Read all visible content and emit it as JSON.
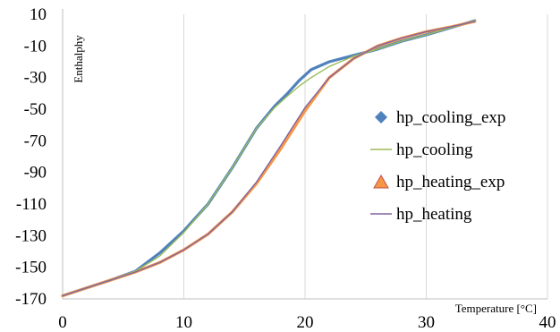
{
  "chart_data": {
    "type": "line",
    "xlabel": "Temperature [°C]",
    "ylabel": "Enthalphy",
    "xlim": [
      0,
      40
    ],
    "ylim": [
      -170,
      10
    ],
    "x_ticks": [
      0,
      10,
      20,
      30,
      40
    ],
    "y_ticks": [
      10,
      -10,
      -30,
      -50,
      -70,
      -90,
      -110,
      -130,
      -150,
      -170
    ],
    "grid": "vertical",
    "legend_position": "right",
    "series": [
      {
        "name": "hp_cooling_exp",
        "color": "#4f81bd",
        "marker": "diamond",
        "points": [
          [
            0,
            -168
          ],
          [
            2,
            -163
          ],
          [
            4,
            -158
          ],
          [
            6,
            -152.5
          ],
          [
            8,
            -141
          ],
          [
            10,
            -127
          ],
          [
            12,
            -110
          ],
          [
            14,
            -87
          ],
          [
            16,
            -62
          ],
          [
            17.5,
            -48
          ],
          [
            18.5,
            -40.5
          ],
          [
            19.5,
            -32
          ],
          [
            20.5,
            -25
          ],
          [
            22,
            -20
          ],
          [
            24,
            -16
          ],
          [
            26,
            -12
          ],
          [
            28,
            -7
          ],
          [
            30,
            -3
          ],
          [
            32,
            1.5
          ],
          [
            34,
            6
          ]
        ]
      },
      {
        "name": "hp_cooling",
        "color": "#9bbb59",
        "marker": "line",
        "points": [
          [
            0,
            -168
          ],
          [
            2,
            -163
          ],
          [
            4,
            -158
          ],
          [
            6,
            -152.5
          ],
          [
            8,
            -143
          ],
          [
            10,
            -128
          ],
          [
            12,
            -110
          ],
          [
            14,
            -87
          ],
          [
            16,
            -62
          ],
          [
            17.5,
            -49
          ],
          [
            18.5,
            -42
          ],
          [
            19.5,
            -35.5
          ],
          [
            20.5,
            -30
          ],
          [
            22,
            -23
          ],
          [
            24,
            -16.5
          ],
          [
            26,
            -12
          ],
          [
            28,
            -7
          ],
          [
            30,
            -3
          ],
          [
            32,
            1.5
          ],
          [
            34,
            6
          ]
        ]
      },
      {
        "name": "hp_heating_exp",
        "color": "#f79646",
        "marker": "triangle",
        "points": [
          [
            0,
            -168
          ],
          [
            2,
            -163
          ],
          [
            4,
            -158
          ],
          [
            6,
            -153
          ],
          [
            8,
            -147
          ],
          [
            10,
            -139
          ],
          [
            12,
            -129
          ],
          [
            14,
            -115
          ],
          [
            16,
            -97
          ],
          [
            18,
            -75
          ],
          [
            20,
            -51
          ],
          [
            22,
            -30
          ],
          [
            24,
            -18
          ],
          [
            26,
            -10
          ],
          [
            28,
            -5
          ],
          [
            30,
            -1
          ],
          [
            32,
            2
          ],
          [
            34,
            5.5
          ]
        ]
      },
      {
        "name": "hp_heating",
        "color": "#8064a2",
        "marker": "line",
        "points": [
          [
            0,
            -168
          ],
          [
            2,
            -163
          ],
          [
            4,
            -158
          ],
          [
            6,
            -153
          ],
          [
            8,
            -147
          ],
          [
            10,
            -139
          ],
          [
            12,
            -129
          ],
          [
            14,
            -115
          ],
          [
            16,
            -96
          ],
          [
            18,
            -73
          ],
          [
            20,
            -49
          ],
          [
            22,
            -30
          ],
          [
            24,
            -18
          ],
          [
            26,
            -10
          ],
          [
            28,
            -5
          ],
          [
            30,
            -1
          ],
          [
            32,
            2
          ],
          [
            34,
            5.5
          ]
        ]
      }
    ]
  }
}
